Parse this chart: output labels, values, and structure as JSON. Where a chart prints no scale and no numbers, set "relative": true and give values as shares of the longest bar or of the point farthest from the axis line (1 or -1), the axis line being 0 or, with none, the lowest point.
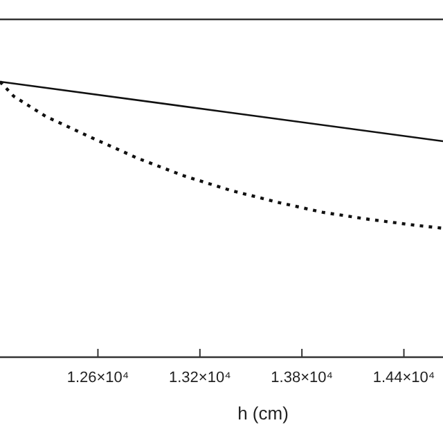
{
  "chart_data": {
    "type": "line",
    "relative": true,
    "xlabel": "h (cm)",
    "xlim": [
      12024,
      14630
    ],
    "xticks": [
      {
        "value": 12600,
        "label": "1.26×10⁴"
      },
      {
        "value": 13200,
        "label": "1.32×10⁴"
      },
      {
        "value": 13800,
        "label": "1.38×10⁴"
      },
      {
        "value": 14400,
        "label": "1.44×10⁴"
      }
    ],
    "series": [
      {
        "color": "#111111",
        "line_style": "solid",
        "x": [
          12024,
          13327,
          14630
        ],
        "values": [
          1,
          0.892,
          0.784
        ]
      },
      {
        "color": "#111111",
        "line_style": "dotted",
        "x": [
          12024,
          12105,
          12293,
          12569,
          12838,
          13107,
          13383,
          13652,
          13921,
          14197,
          14466,
          14630
        ],
        "values": [
          1,
          0.947,
          0.874,
          0.795,
          0.721,
          0.658,
          0.605,
          0.563,
          0.526,
          0.5,
          0.479,
          0.468
        ]
      }
    ]
  }
}
